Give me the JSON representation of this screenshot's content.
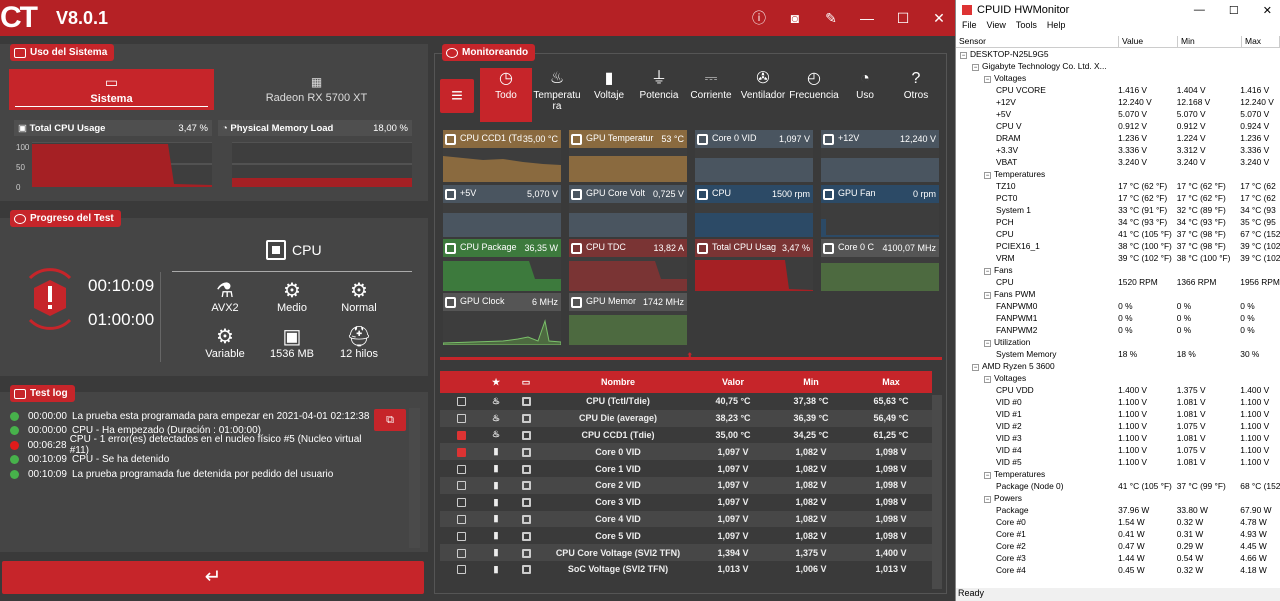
{
  "app": {
    "logo": "CT",
    "version": "V8.0.1"
  },
  "uso": {
    "tag": "Uso del Sistema",
    "tab1": "Sistema",
    "tab2": "Radeon RX 5700 XT",
    "m1": {
      "label": "Total CPU Usage",
      "value": "3,47 %"
    },
    "m2": {
      "label": "Physical Memory Load",
      "value": "18,00 %"
    },
    "yaxis": [
      "100",
      "50",
      "0"
    ]
  },
  "progreso": {
    "tag": "Progreso del Test",
    "elapsed": "00:10:09",
    "total": "01:00:00",
    "device": "CPU",
    "items": [
      {
        "icon": "flask",
        "label": "AVX2"
      },
      {
        "icon": "gear",
        "label": "Medio"
      },
      {
        "icon": "gears",
        "label": "Normal"
      },
      {
        "icon": "gears",
        "label": "Variable"
      },
      {
        "icon": "chip",
        "label": "1536 MB"
      },
      {
        "icon": "worker",
        "label": "12 hilos"
      }
    ]
  },
  "log": {
    "tag": "Test log",
    "entries": [
      {
        "time": "00:00:00",
        "text": "La prueba esta programada para empezar en 2021-04-01 02:12:38",
        "status": "ok"
      },
      {
        "time": "00:00:00",
        "text": "CPU - Ha empezado (Duración : 01:00:00)",
        "status": "ok"
      },
      {
        "time": "00:06:28",
        "text": "CPU - 1 error(es) detectados en el nucleo físico #5 (Nucleo virtual #11)",
        "status": "err"
      },
      {
        "time": "00:10:09",
        "text": "CPU - Se ha detenido",
        "status": "ok"
      },
      {
        "time": "00:10:09",
        "text": "La prueba programada fue detenida por pedido del usuario",
        "status": "ok"
      }
    ]
  },
  "monitor": {
    "tag": "Monitoreando",
    "cats": [
      "Todo",
      "Temperatura",
      "Voltaje",
      "Potencia",
      "Corriente",
      "Ventilador",
      "Frecuencia",
      "Uso",
      "Otros"
    ],
    "sensors": [
      {
        "name": "CPU CCD1 (Td",
        "value": "35,00 °C",
        "color": "#8a6a3f"
      },
      {
        "name": "GPU Temperatur",
        "value": "53 °C",
        "color": "#8a6a3f"
      },
      {
        "name": "Core 0 VID",
        "value": "1,097 V",
        "color": "#4a5560"
      },
      {
        "name": "+12V",
        "value": "12,240 V",
        "color": "#4a5560"
      },
      {
        "name": "+5V",
        "value": "5,070 V",
        "color": "#4a5560"
      },
      {
        "name": "GPU Core Volt",
        "value": "0,725 V",
        "color": "#4a5560"
      },
      {
        "name": "CPU",
        "value": "1500 rpm",
        "color": "#2c4a66"
      },
      {
        "name": "GPU Fan",
        "value": "0 rpm",
        "color": "#2c4a66"
      },
      {
        "name": "CPU Package",
        "value": "36,35 W",
        "color": "#3d7a3d"
      },
      {
        "name": "CPU TDC",
        "value": "13,82 A",
        "color": "#7a3434"
      },
      {
        "name": "Total CPU Usag",
        "value": "3,47 %",
        "color": "#7a3434"
      },
      {
        "name": "Core 0 C",
        "value": "4100,07 MHz",
        "color": "#555"
      },
      {
        "name": "GPU Clock",
        "value": "6 MHz",
        "color": "#555"
      },
      {
        "name": "GPU Memor",
        "value": "1742 MHz",
        "color": "#555"
      }
    ],
    "table": {
      "headers": [
        "★",
        "▭",
        "Nombre",
        "Valor",
        "Min",
        "Max"
      ],
      "rows": [
        {
          "checked": false,
          "name": "CPU (Tctl/Tdie)",
          "val": "40,75 °C",
          "min": "37,38 °C",
          "max": "65,63 °C"
        },
        {
          "checked": false,
          "name": "CPU Die (average)",
          "val": "38,23 °C",
          "min": "36,39 °C",
          "max": "56,49 °C"
        },
        {
          "checked": true,
          "name": "CPU CCD1 (Tdie)",
          "val": "35,00 °C",
          "min": "34,25 °C",
          "max": "61,25 °C"
        },
        {
          "checked": true,
          "name": "Core 0 VID",
          "val": "1,097 V",
          "min": "1,082 V",
          "max": "1,098 V"
        },
        {
          "checked": false,
          "name": "Core 1 VID",
          "val": "1,097 V",
          "min": "1,082 V",
          "max": "1,098 V"
        },
        {
          "checked": false,
          "name": "Core 2 VID",
          "val": "1,097 V",
          "min": "1,082 V",
          "max": "1,098 V"
        },
        {
          "checked": false,
          "name": "Core 3 VID",
          "val": "1,097 V",
          "min": "1,082 V",
          "max": "1,098 V"
        },
        {
          "checked": false,
          "name": "Core 4 VID",
          "val": "1,097 V",
          "min": "1,082 V",
          "max": "1,098 V"
        },
        {
          "checked": false,
          "name": "Core 5 VID",
          "val": "1,097 V",
          "min": "1,082 V",
          "max": "1,098 V"
        },
        {
          "checked": false,
          "name": "CPU Core Voltage (SVI2 TFN)",
          "val": "1,394 V",
          "min": "1,375 V",
          "max": "1,400 V"
        },
        {
          "checked": false,
          "name": "SoC Voltage (SVI2 TFN)",
          "val": "1,013 V",
          "min": "1,006 V",
          "max": "1,013 V"
        }
      ]
    }
  },
  "hwm": {
    "title": "CPUID HWMonitor",
    "menu": [
      "File",
      "View",
      "Tools",
      "Help"
    ],
    "cols": [
      "Sensor",
      "Value",
      "Min",
      "Max"
    ],
    "status": "Ready",
    "rows": [
      {
        "d": 0,
        "n": "DESKTOP-N25L9G5",
        "v": "",
        "mi": "",
        "ma": ""
      },
      {
        "d": 1,
        "n": "Gigabyte Technology Co. Ltd. X...",
        "v": "",
        "mi": "",
        "ma": ""
      },
      {
        "d": 2,
        "n": "Voltages",
        "v": "",
        "mi": "",
        "ma": ""
      },
      {
        "d": 3,
        "n": "CPU VCORE",
        "v": "1.416 V",
        "mi": "1.404 V",
        "ma": "1.416 V"
      },
      {
        "d": 3,
        "n": "+12V",
        "v": "12.240 V",
        "mi": "12.168 V",
        "ma": "12.240 V"
      },
      {
        "d": 3,
        "n": "+5V",
        "v": "5.070 V",
        "mi": "5.070 V",
        "ma": "5.070 V"
      },
      {
        "d": 3,
        "n": "CPU V",
        "v": "0.912 V",
        "mi": "0.912 V",
        "ma": "0.924 V"
      },
      {
        "d": 3,
        "n": "DRAM",
        "v": "1.236 V",
        "mi": "1.224 V",
        "ma": "1.236 V"
      },
      {
        "d": 3,
        "n": "+3.3V",
        "v": "3.336 V",
        "mi": "3.312 V",
        "ma": "3.336 V"
      },
      {
        "d": 3,
        "n": "VBAT",
        "v": "3.240 V",
        "mi": "3.240 V",
        "ma": "3.240 V"
      },
      {
        "d": 2,
        "n": "Temperatures",
        "v": "",
        "mi": "",
        "ma": ""
      },
      {
        "d": 3,
        "n": "TZ10",
        "v": "17 °C  (62 °F)",
        "mi": "17 °C  (62 °F)",
        "ma": "17 °C  (62"
      },
      {
        "d": 3,
        "n": "PCT0",
        "v": "17 °C  (62 °F)",
        "mi": "17 °C  (62 °F)",
        "ma": "17 °C  (62"
      },
      {
        "d": 3,
        "n": "System 1",
        "v": "33 °C  (91 °F)",
        "mi": "32 °C  (89 °F)",
        "ma": "34 °C  (93"
      },
      {
        "d": 3,
        "n": "PCH",
        "v": "34 °C  (93 °F)",
        "mi": "34 °C  (93 °F)",
        "ma": "35 °C  (95"
      },
      {
        "d": 3,
        "n": "CPU",
        "v": "41 °C  (105 °F)",
        "mi": "37 °C  (98 °F)",
        "ma": "67 °C  (152"
      },
      {
        "d": 3,
        "n": "PCIEX16_1",
        "v": "38 °C  (100 °F)",
        "mi": "37 °C  (98 °F)",
        "ma": "39 °C  (102"
      },
      {
        "d": 3,
        "n": "VRM",
        "v": "39 °C  (102 °F)",
        "mi": "38 °C  (100 °F)",
        "ma": "39 °C  (102"
      },
      {
        "d": 2,
        "n": "Fans",
        "v": "",
        "mi": "",
        "ma": ""
      },
      {
        "d": 3,
        "n": "CPU",
        "v": "1520 RPM",
        "mi": "1366 RPM",
        "ma": "1956 RPM"
      },
      {
        "d": 2,
        "n": "Fans PWM",
        "v": "",
        "mi": "",
        "ma": ""
      },
      {
        "d": 3,
        "n": "FANPWM0",
        "v": "0 %",
        "mi": "0 %",
        "ma": "0 %"
      },
      {
        "d": 3,
        "n": "FANPWM1",
        "v": "0 %",
        "mi": "0 %",
        "ma": "0 %"
      },
      {
        "d": 3,
        "n": "FANPWM2",
        "v": "0 %",
        "mi": "0 %",
        "ma": "0 %"
      },
      {
        "d": 2,
        "n": "Utilization",
        "v": "",
        "mi": "",
        "ma": ""
      },
      {
        "d": 3,
        "n": "System Memory",
        "v": "18 %",
        "mi": "18 %",
        "ma": "30 %"
      },
      {
        "d": 1,
        "n": "AMD Ryzen 5 3600",
        "v": "",
        "mi": "",
        "ma": ""
      },
      {
        "d": 2,
        "n": "Voltages",
        "v": "",
        "mi": "",
        "ma": ""
      },
      {
        "d": 3,
        "n": "CPU VDD",
        "v": "1.400 V",
        "mi": "1.375 V",
        "ma": "1.400 V"
      },
      {
        "d": 3,
        "n": "VID #0",
        "v": "1.100 V",
        "mi": "1.081 V",
        "ma": "1.100 V"
      },
      {
        "d": 3,
        "n": "VID #1",
        "v": "1.100 V",
        "mi": "1.081 V",
        "ma": "1.100 V"
      },
      {
        "d": 3,
        "n": "VID #2",
        "v": "1.100 V",
        "mi": "1.075 V",
        "ma": "1.100 V"
      },
      {
        "d": 3,
        "n": "VID #3",
        "v": "1.100 V",
        "mi": "1.081 V",
        "ma": "1.100 V"
      },
      {
        "d": 3,
        "n": "VID #4",
        "v": "1.100 V",
        "mi": "1.075 V",
        "ma": "1.100 V"
      },
      {
        "d": 3,
        "n": "VID #5",
        "v": "1.100 V",
        "mi": "1.081 V",
        "ma": "1.100 V"
      },
      {
        "d": 2,
        "n": "Temperatures",
        "v": "",
        "mi": "",
        "ma": ""
      },
      {
        "d": 3,
        "n": "Package (Node 0)",
        "v": "41 °C  (105 °F)",
        "mi": "37 °C  (99 °F)",
        "ma": "68 °C  (152"
      },
      {
        "d": 2,
        "n": "Powers",
        "v": "",
        "mi": "",
        "ma": ""
      },
      {
        "d": 3,
        "n": "Package",
        "v": "37.96 W",
        "mi": "33.80 W",
        "ma": "67.90 W"
      },
      {
        "d": 3,
        "n": "Core #0",
        "v": "1.54 W",
        "mi": "0.32 W",
        "ma": "4.78 W"
      },
      {
        "d": 3,
        "n": "Core #1",
        "v": "0.41 W",
        "mi": "0.31 W",
        "ma": "4.93 W"
      },
      {
        "d": 3,
        "n": "Core #2",
        "v": "0.47 W",
        "mi": "0.29 W",
        "ma": "4.45 W"
      },
      {
        "d": 3,
        "n": "Core #3",
        "v": "1.44 W",
        "mi": "0.54 W",
        "ma": "4.66 W"
      },
      {
        "d": 3,
        "n": "Core #4",
        "v": "0.45 W",
        "mi": "0.32 W",
        "ma": "4.18 W"
      }
    ]
  }
}
